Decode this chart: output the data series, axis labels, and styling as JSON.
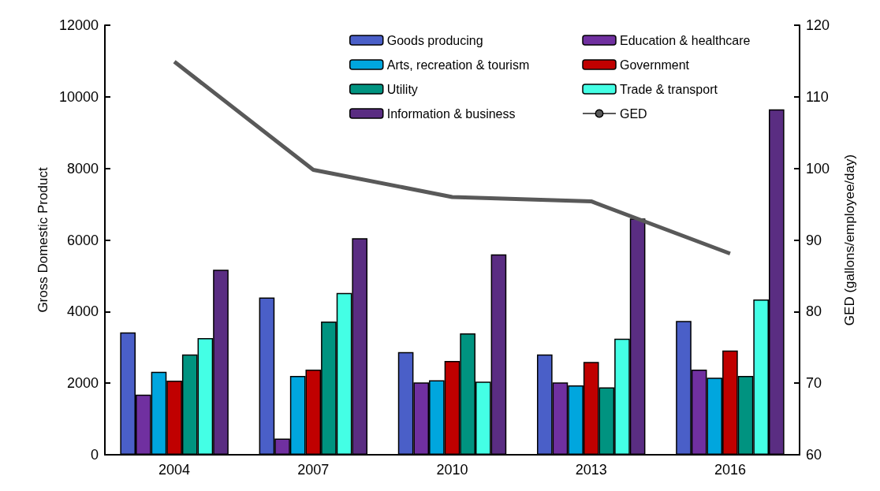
{
  "chart_data": {
    "type": "bar",
    "ylabel": "Gross Domestic Product",
    "y2label": "GED (gallons/employee/day)",
    "categories": [
      "2004",
      "2007",
      "2010",
      "2013",
      "2016"
    ],
    "ylim": [
      0,
      12000
    ],
    "yticks": [
      0,
      2000,
      4000,
      6000,
      8000,
      10000,
      12000
    ],
    "y2lim": [
      60,
      120
    ],
    "y2ticks": [
      60,
      70,
      80,
      90,
      100,
      110,
      120
    ],
    "grid": false,
    "legend": "top right",
    "series": [
      {
        "name": "Goods producing",
        "color": "#4a5fc8",
        "values": [
          3420,
          4390,
          2870,
          2800,
          3740
        ]
      },
      {
        "name": "Education & healthcare",
        "color": "#7030a0",
        "values": [
          1680,
          450,
          2020,
          2020,
          2380
        ]
      },
      {
        "name": "Arts, recreation & tourism",
        "color": "#00a6de",
        "values": [
          2320,
          2200,
          2080,
          1940,
          2150
        ]
      },
      {
        "name": "Government",
        "color": "#c00000",
        "values": [
          2070,
          2380,
          2620,
          2590,
          2910
        ]
      },
      {
        "name": "Utility",
        "color": "#009380",
        "values": [
          2800,
          3720,
          3390,
          1880,
          2200
        ]
      },
      {
        "name": "Trade & transport",
        "color": "#44ffe5",
        "values": [
          3260,
          4520,
          2040,
          3240,
          4340
        ]
      },
      {
        "name": "Information & business",
        "color": "#5a2d82",
        "values": [
          5170,
          6050,
          5600,
          6600,
          9650
        ]
      },
      {
        "name": "GED",
        "color": "#595959",
        "type": "line",
        "axis": "y2",
        "marker": "none",
        "values": [
          114.9,
          99.8,
          96,
          95.4,
          88.1
        ]
      }
    ]
  }
}
